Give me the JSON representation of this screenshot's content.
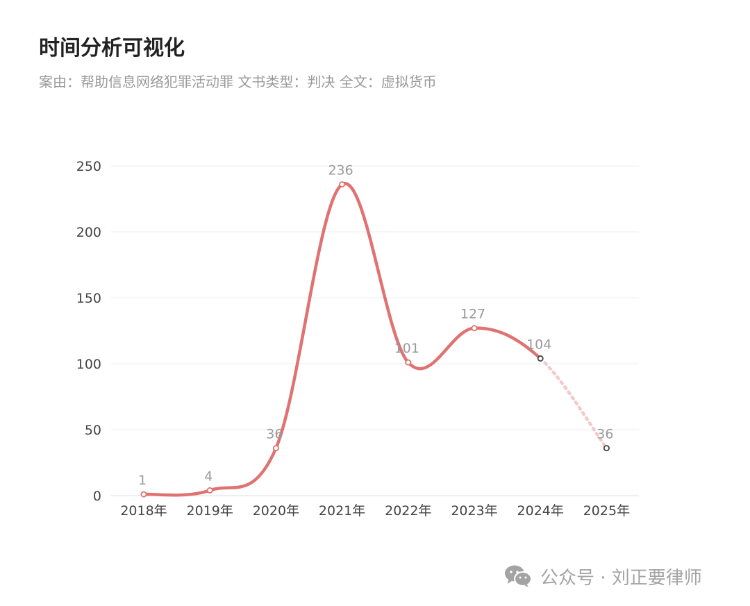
{
  "header": {
    "title": "时间分析可视化",
    "subtitle": "案由：帮助信息网络犯罪活动罪  文书类型：判决  全文：虚拟货币"
  },
  "chart_data": {
    "type": "line",
    "smooth": true,
    "categories": [
      "2018年",
      "2019年",
      "2020年",
      "2021年",
      "2022年",
      "2023年",
      "2024年",
      "2025年"
    ],
    "series": [
      {
        "values": [
          1,
          4,
          36,
          236,
          101,
          127,
          104,
          36
        ],
        "color": "#e07272"
      }
    ],
    "dashed_from_index": 6,
    "dashed_color": "#f3caca",
    "point_labels": [
      "1",
      "4",
      "36",
      "236",
      "101",
      "127",
      "104",
      "36"
    ],
    "yticks": [
      "0",
      "50",
      "100",
      "150",
      "200",
      "250"
    ],
    "ylim": [
      0,
      250
    ],
    "grid": true,
    "legend": "none"
  },
  "watermark": {
    "icon": "wechat-icon",
    "text": "公众号 · 刘正要律师"
  },
  "colors": {
    "line": "#e07272",
    "marker_normal": "#e07272",
    "marker_projected": "#444444",
    "label": "#9a9a9a",
    "axis_text": "#444444",
    "grid": "#eeeeee"
  }
}
